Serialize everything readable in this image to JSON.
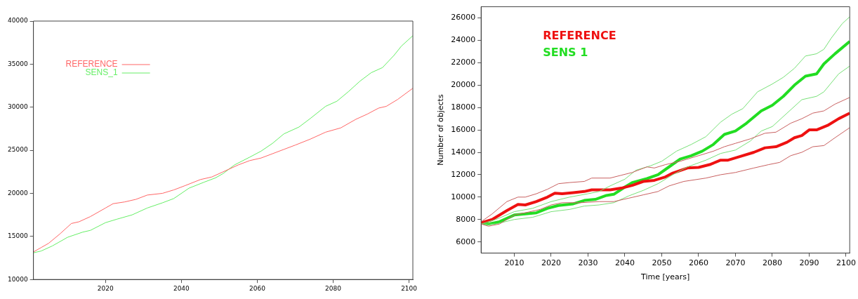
{
  "chart_data": [
    {
      "type": "line",
      "xlim": [
        2001,
        2101
      ],
      "xticks": [
        2020,
        2040,
        2060,
        2080,
        2100
      ],
      "ylim": [
        10000,
        40000
      ],
      "yticks": [
        10000,
        15000,
        20000,
        25000,
        30000,
        35000,
        40000
      ],
      "grid": false,
      "legend": "top left",
      "marker": "none",
      "line_style": "solid",
      "series": [
        {
          "name": "REFERENCE",
          "color": "#ff6666",
          "x": [
            2001,
            2003,
            2005,
            2008,
            2011,
            2013,
            2016,
            2020,
            2022,
            2025,
            2028,
            2031,
            2035,
            2038,
            2041,
            2045,
            2048,
            2051,
            2055,
            2058,
            2061,
            2064,
            2067,
            2070,
            2074,
            2078,
            2082,
            2086,
            2089,
            2092,
            2094,
            2097,
            2101
          ],
          "values": [
            13200,
            13700,
            14200,
            15300,
            16500,
            16700,
            17300,
            18300,
            18800,
            19000,
            19300,
            19800,
            20000,
            20400,
            20900,
            21600,
            21900,
            22500,
            23300,
            23800,
            24100,
            24600,
            25100,
            25600,
            26300,
            27100,
            27600,
            28600,
            29200,
            29900,
            30100,
            30900,
            32200
          ]
        },
        {
          "name": "SENS_1",
          "color": "#66ee66",
          "x": [
            2001,
            2003,
            2006,
            2010,
            2014,
            2016,
            2020,
            2023,
            2027,
            2031,
            2035,
            2038,
            2042,
            2046,
            2049,
            2051,
            2054,
            2058,
            2061,
            2064,
            2067,
            2071,
            2074,
            2078,
            2081,
            2084,
            2087,
            2090,
            2093,
            2096,
            2098,
            2101
          ],
          "values": [
            13100,
            13300,
            13900,
            14900,
            15500,
            15700,
            16600,
            17000,
            17500,
            18300,
            18900,
            19400,
            20600,
            21300,
            21800,
            22300,
            23300,
            24200,
            24900,
            25800,
            26900,
            27700,
            28700,
            30100,
            30700,
            31800,
            33000,
            34000,
            34600,
            36000,
            37100,
            38300
          ]
        }
      ]
    },
    {
      "type": "line",
      "xlabel": "Time [years]",
      "ylabel": "Number of objects",
      "xlim": [
        2001,
        2101
      ],
      "xticks": [
        2010,
        2020,
        2030,
        2040,
        2050,
        2060,
        2070,
        2080,
        2090,
        2100
      ],
      "ylim": [
        5000,
        27000
      ],
      "yticks": [
        6000,
        8000,
        10000,
        12000,
        14000,
        16000,
        18000,
        20000,
        22000,
        24000,
        26000
      ],
      "grid": false,
      "legend": "top left",
      "marker": "none",
      "line_style": "solid",
      "series": [
        {
          "color": "#c86060",
          "x": [
            2001,
            2004,
            2008,
            2011,
            2013,
            2016,
            2019,
            2022,
            2025,
            2029,
            2031,
            2036,
            2039,
            2042,
            2046,
            2048,
            2051,
            2055,
            2060,
            2064,
            2067,
            2070,
            2074,
            2078,
            2081,
            2085,
            2088,
            2091,
            2094,
            2097,
            2101
          ],
          "values": [
            7800,
            8500,
            9600,
            10000,
            10000,
            10300,
            10700,
            11200,
            11300,
            11400,
            11700,
            11700,
            11950,
            12200,
            12700,
            12600,
            12900,
            13200,
            13700,
            14100,
            14500,
            14800,
            15200,
            15700,
            15800,
            16600,
            17000,
            17500,
            17700,
            18300,
            18900
          ]
        },
        {
          "color": "#c86060",
          "x": [
            2001,
            2003,
            2006,
            2010,
            2013,
            2017,
            2020,
            2023,
            2028,
            2033,
            2037,
            2041,
            2045,
            2049,
            2052,
            2056,
            2062,
            2066,
            2070,
            2075,
            2079,
            2082,
            2085,
            2088,
            2091,
            2094,
            2097,
            2101
          ],
          "values": [
            7600,
            7400,
            7600,
            8400,
            8600,
            8900,
            9300,
            9500,
            9500,
            9600,
            9600,
            9900,
            10200,
            10500,
            11000,
            11400,
            11700,
            12000,
            12200,
            12600,
            12900,
            13100,
            13700,
            14000,
            14500,
            14600,
            15300,
            16200
          ]
        },
        {
          "color": "#77e077",
          "x": [
            2001,
            2005,
            2010,
            2015,
            2020,
            2025,
            2030,
            2033,
            2036,
            2040,
            2043,
            2047,
            2050,
            2054,
            2058,
            2062,
            2066,
            2069,
            2072,
            2076,
            2080,
            2083,
            2086,
            2089,
            2092,
            2094,
            2096,
            2099,
            2101
          ],
          "values": [
            7600,
            8000,
            8700,
            9000,
            9600,
            10000,
            10300,
            10500,
            11000,
            11600,
            12400,
            12800,
            13200,
            14100,
            14700,
            15400,
            16700,
            17400,
            17900,
            19400,
            20100,
            20700,
            21500,
            22600,
            22800,
            23200,
            24200,
            25500,
            26100
          ]
        },
        {
          "color": "#77e077",
          "x": [
            2001,
            2005,
            2010,
            2015,
            2020,
            2025,
            2029,
            2033,
            2037,
            2041,
            2045,
            2049,
            2053,
            2057,
            2062,
            2066,
            2070,
            2074,
            2077,
            2080,
            2084,
            2088,
            2092,
            2094,
            2096,
            2098,
            2101
          ],
          "values": [
            7600,
            7600,
            8000,
            8200,
            8700,
            8900,
            9200,
            9300,
            9500,
            10100,
            10600,
            11200,
            12000,
            12700,
            13300,
            13900,
            14200,
            15000,
            15900,
            16300,
            17500,
            18700,
            19000,
            19400,
            20200,
            21000,
            21700
          ]
        },
        {
          "name": "REFERENCE",
          "color": "#ee1111",
          "x": [
            2001,
            2004,
            2008,
            2011,
            2013,
            2016,
            2019,
            2021,
            2023,
            2026,
            2029,
            2031,
            2036,
            2039,
            2042,
            2045,
            2048,
            2051,
            2053,
            2057,
            2060,
            2063,
            2066,
            2068,
            2071,
            2075,
            2078,
            2081,
            2084,
            2086,
            2088,
            2090,
            2092,
            2095,
            2098,
            2101
          ],
          "values": [
            7700,
            8000,
            8800,
            9350,
            9300,
            9600,
            10000,
            10350,
            10300,
            10400,
            10500,
            10650,
            10650,
            10800,
            11050,
            11400,
            11500,
            11800,
            12150,
            12600,
            12650,
            12900,
            13300,
            13300,
            13600,
            14000,
            14400,
            14500,
            14900,
            15300,
            15500,
            16000,
            16000,
            16400,
            17000,
            17500
          ]
        },
        {
          "name": "SENS 1",
          "color": "#22dd22",
          "x": [
            2001,
            2003,
            2006,
            2010,
            2013,
            2016,
            2019,
            2022,
            2026,
            2029,
            2032,
            2035,
            2037,
            2040,
            2042,
            2046,
            2049,
            2052,
            2055,
            2058,
            2061,
            2064,
            2067,
            2070,
            2073,
            2077,
            2080,
            2083,
            2086,
            2089,
            2092,
            2094,
            2097,
            2101
          ],
          "values": [
            7700,
            7600,
            7800,
            8400,
            8500,
            8600,
            9000,
            9250,
            9400,
            9700,
            9800,
            10150,
            10250,
            10900,
            11300,
            11650,
            12000,
            12700,
            13400,
            13700,
            14100,
            14700,
            15600,
            15900,
            16600,
            17700,
            18200,
            19000,
            20000,
            20800,
            21000,
            21900,
            22800,
            23900
          ]
        }
      ]
    }
  ]
}
